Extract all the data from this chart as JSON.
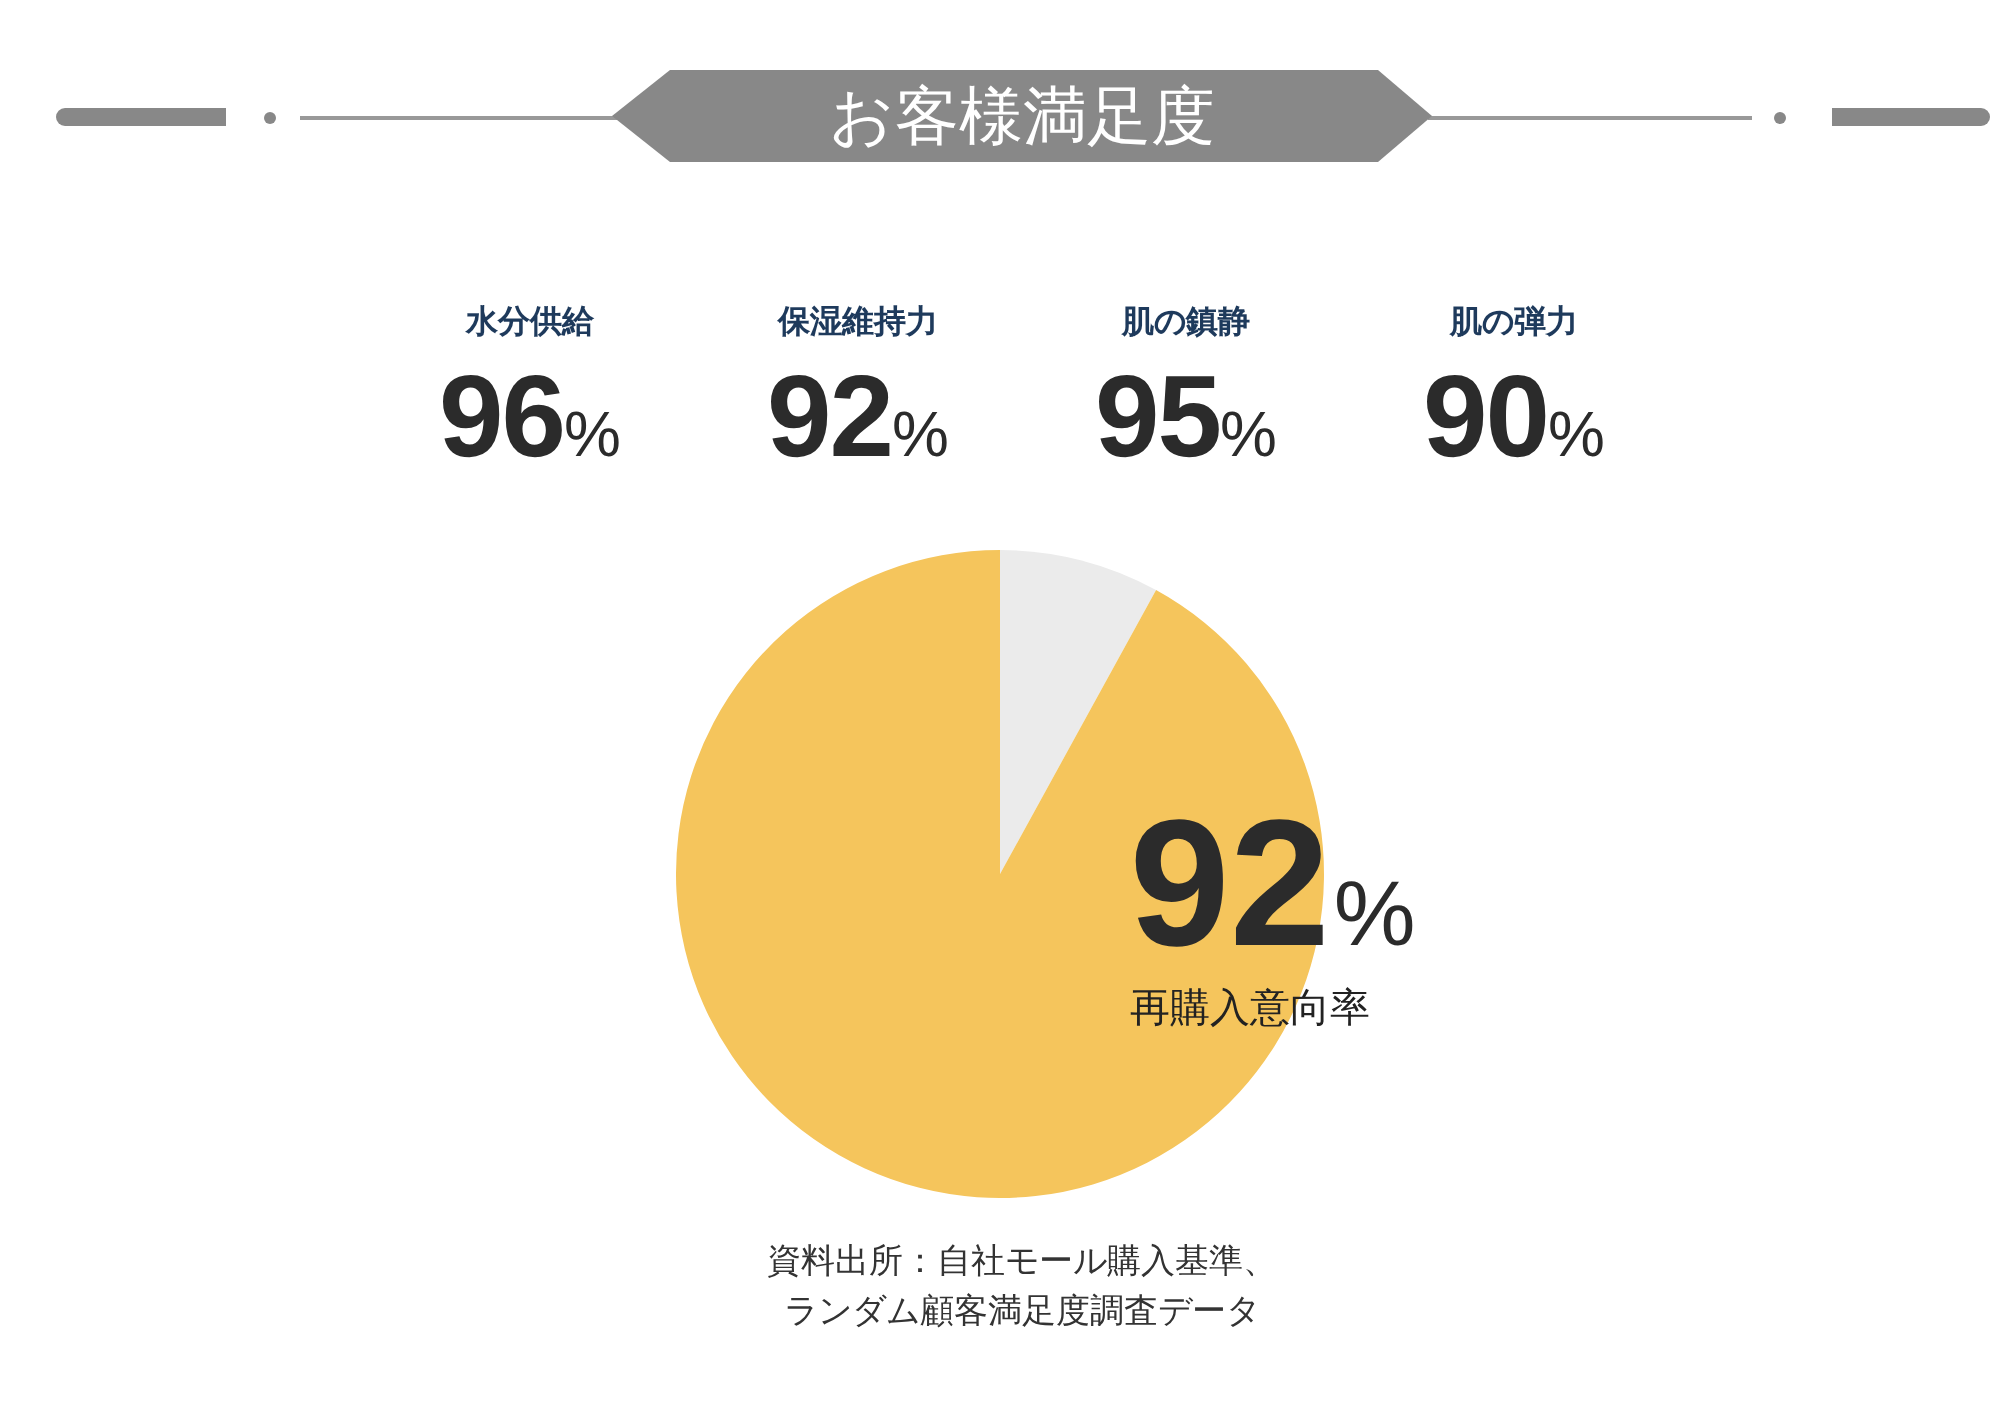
{
  "chart_data": [
    {
      "type": "other",
      "title": "お客様満足度",
      "categories": [
        "水分供給",
        "保湿維持力",
        "肌の鎮静",
        "肌の弾力"
      ],
      "values": [
        96,
        92,
        95,
        90
      ],
      "value_labels": [
        "96%",
        "92%",
        "95%",
        "90%"
      ]
    },
    {
      "type": "pie",
      "categories": [
        null,
        "再購入意向率"
      ],
      "values": [
        8,
        92
      ],
      "colors": [
        "#ebebeb",
        "#f5c55c"
      ],
      "value_labels": [
        null,
        "92%"
      ],
      "annotations": [
        "資料出所：自社モール購入基準、ランダム顧客満足度調査データ"
      ]
    }
  ]
}
